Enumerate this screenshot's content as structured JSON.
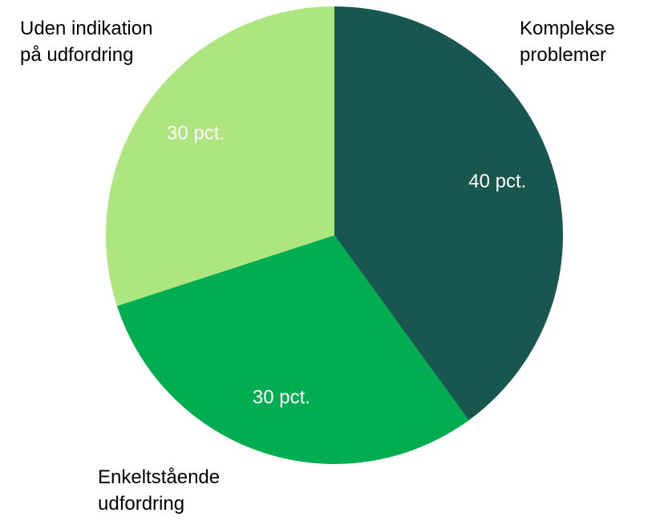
{
  "chart_data": {
    "type": "pie",
    "categories": [
      "Komplekse\nproblemer",
      "Enkeltstående\nudfordring",
      "Uden indikation\npå udfordring"
    ],
    "values": [
      40,
      30,
      30
    ],
    "value_labels": [
      "40 pct.",
      "30 pct.",
      "30 pct."
    ],
    "colors": [
      "#17574f",
      "#00ad50",
      "#ade57e"
    ]
  }
}
